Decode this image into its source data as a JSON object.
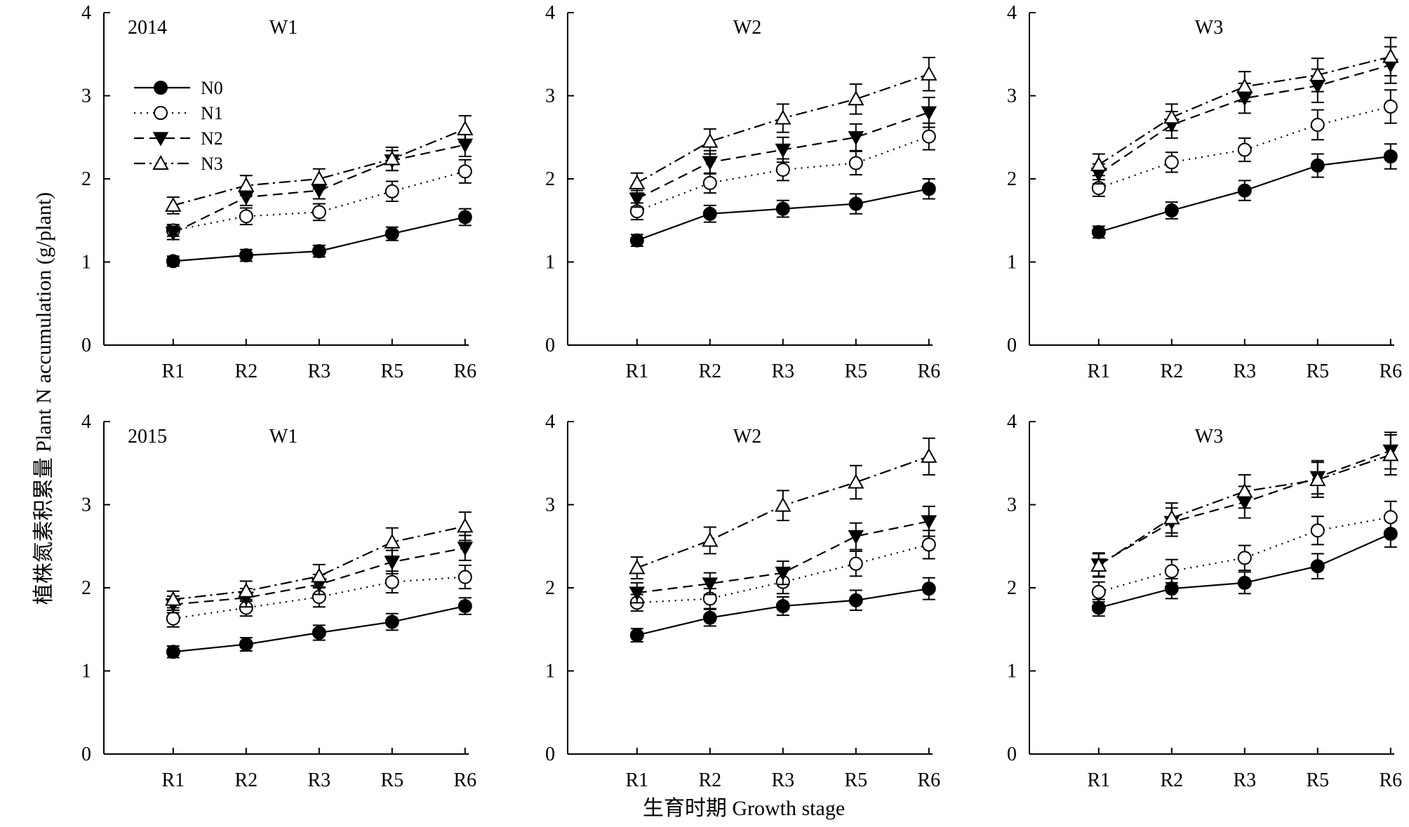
{
  "figure": {
    "ylabel": "植株氮素积累量 Plant N accumulation (g/plant)",
    "xlabel": "生育时期 Growth stage"
  },
  "legend": [
    {
      "name": "N0",
      "marker": "filled-circle",
      "line": "solid"
    },
    {
      "name": "N1",
      "marker": "open-circle",
      "line": "dotted"
    },
    {
      "name": "N2",
      "marker": "filled-triangle-down",
      "line": "dashed"
    },
    {
      "name": "N3",
      "marker": "open-triangle-up",
      "line": "dash-dot"
    }
  ],
  "chart_data": [
    {
      "type": "line",
      "year": "2014",
      "title": "W1",
      "categories": [
        "R1",
        "R2",
        "R3",
        "R5",
        "R6"
      ],
      "ylim": [
        0,
        4
      ],
      "yticks": [
        0,
        1,
        2,
        3,
        4
      ],
      "series": [
        {
          "name": "N0",
          "values": [
            1.01,
            1.08,
            1.13,
            1.34,
            1.54
          ],
          "errors": [
            0.06,
            0.07,
            0.07,
            0.08,
            0.1
          ]
        },
        {
          "name": "N1",
          "values": [
            1.38,
            1.55,
            1.6,
            1.85,
            2.09
          ],
          "errors": [
            0.07,
            0.1,
            0.1,
            0.12,
            0.14
          ]
        },
        {
          "name": "N2",
          "values": [
            1.35,
            1.78,
            1.86,
            2.22,
            2.41
          ],
          "errors": [
            0.08,
            0.1,
            0.1,
            0.12,
            0.14
          ]
        },
        {
          "name": "N3",
          "values": [
            1.68,
            1.92,
            2.0,
            2.24,
            2.6
          ],
          "errors": [
            0.1,
            0.12,
            0.12,
            0.14,
            0.16
          ]
        }
      ]
    },
    {
      "type": "line",
      "year": "",
      "title": "W2",
      "categories": [
        "R1",
        "R2",
        "R3",
        "R5",
        "R6"
      ],
      "ylim": [
        0,
        4
      ],
      "yticks": [
        0,
        1,
        2,
        3,
        4
      ],
      "series": [
        {
          "name": "N0",
          "values": [
            1.26,
            1.58,
            1.64,
            1.7,
            1.88
          ],
          "errors": [
            0.07,
            0.1,
            0.1,
            0.12,
            0.12
          ]
        },
        {
          "name": "N1",
          "values": [
            1.61,
            1.95,
            2.11,
            2.19,
            2.51
          ],
          "errors": [
            0.1,
            0.12,
            0.13,
            0.14,
            0.16
          ]
        },
        {
          "name": "N2",
          "values": [
            1.76,
            2.2,
            2.35,
            2.5,
            2.8
          ],
          "errors": [
            0.1,
            0.14,
            0.15,
            0.16,
            0.18
          ]
        },
        {
          "name": "N3",
          "values": [
            1.95,
            2.45,
            2.73,
            2.96,
            3.26
          ],
          "errors": [
            0.12,
            0.15,
            0.17,
            0.18,
            0.2
          ]
        }
      ]
    },
    {
      "type": "line",
      "year": "",
      "title": "W3",
      "categories": [
        "R1",
        "R2",
        "R3",
        "R5",
        "R6"
      ],
      "ylim": [
        0,
        4
      ],
      "yticks": [
        0,
        1,
        2,
        3,
        4
      ],
      "series": [
        {
          "name": "N0",
          "values": [
            1.36,
            1.62,
            1.86,
            2.16,
            2.27
          ],
          "errors": [
            0.07,
            0.1,
            0.12,
            0.14,
            0.15
          ]
        },
        {
          "name": "N1",
          "values": [
            1.89,
            2.2,
            2.35,
            2.65,
            2.87
          ],
          "errors": [
            0.1,
            0.12,
            0.14,
            0.18,
            0.2
          ]
        },
        {
          "name": "N2",
          "values": [
            2.06,
            2.65,
            2.97,
            3.12,
            3.37
          ],
          "errors": [
            0.12,
            0.16,
            0.18,
            0.2,
            0.22
          ]
        },
        {
          "name": "N3",
          "values": [
            2.17,
            2.74,
            3.11,
            3.25,
            3.47
          ],
          "errors": [
            0.13,
            0.16,
            0.18,
            0.2,
            0.23
          ]
        }
      ]
    },
    {
      "type": "line",
      "year": "2015",
      "title": "W1",
      "categories": [
        "R1",
        "R2",
        "R3",
        "R5",
        "R6"
      ],
      "ylim": [
        0,
        4
      ],
      "yticks": [
        0,
        1,
        2,
        3,
        4
      ],
      "series": [
        {
          "name": "N0",
          "values": [
            1.23,
            1.32,
            1.46,
            1.59,
            1.78
          ],
          "errors": [
            0.07,
            0.08,
            0.09,
            0.1,
            0.1
          ]
        },
        {
          "name": "N1",
          "values": [
            1.63,
            1.76,
            1.89,
            2.07,
            2.13
          ],
          "errors": [
            0.1,
            0.1,
            0.12,
            0.13,
            0.14
          ]
        },
        {
          "name": "N2",
          "values": [
            1.8,
            1.88,
            2.04,
            2.31,
            2.48
          ],
          "errors": [
            0.1,
            0.11,
            0.12,
            0.14,
            0.15
          ]
        },
        {
          "name": "N3",
          "values": [
            1.86,
            1.96,
            2.14,
            2.55,
            2.74
          ],
          "errors": [
            0.1,
            0.12,
            0.14,
            0.17,
            0.17
          ]
        }
      ]
    },
    {
      "type": "line",
      "year": "",
      "title": "W2",
      "categories": [
        "R1",
        "R2",
        "R3",
        "R5",
        "R6"
      ],
      "ylim": [
        0,
        4
      ],
      "yticks": [
        0,
        1,
        2,
        3,
        4
      ],
      "series": [
        {
          "name": "N0",
          "values": [
            1.43,
            1.64,
            1.78,
            1.85,
            1.99
          ],
          "errors": [
            0.08,
            0.1,
            0.11,
            0.12,
            0.13
          ]
        },
        {
          "name": "N1",
          "values": [
            1.82,
            1.87,
            2.07,
            2.29,
            2.52
          ],
          "errors": [
            0.1,
            0.12,
            0.14,
            0.15,
            0.17
          ]
        },
        {
          "name": "N2",
          "values": [
            1.94,
            2.05,
            2.18,
            2.62,
            2.8
          ],
          "errors": [
            0.12,
            0.13,
            0.14,
            0.16,
            0.18
          ]
        },
        {
          "name": "N3",
          "values": [
            2.24,
            2.57,
            2.99,
            3.27,
            3.58
          ],
          "errors": [
            0.13,
            0.16,
            0.18,
            0.2,
            0.22
          ]
        }
      ]
    },
    {
      "type": "line",
      "year": "",
      "title": "W3",
      "categories": [
        "R1",
        "R2",
        "R3",
        "R5",
        "R6"
      ],
      "ylim": [
        0,
        4
      ],
      "yticks": [
        0,
        1,
        2,
        3,
        4
      ],
      "series": [
        {
          "name": "N0",
          "values": [
            1.76,
            1.99,
            2.06,
            2.26,
            2.65
          ],
          "errors": [
            0.1,
            0.12,
            0.13,
            0.15,
            0.16
          ]
        },
        {
          "name": "N1",
          "values": [
            1.95,
            2.2,
            2.36,
            2.69,
            2.85
          ],
          "errors": [
            0.12,
            0.14,
            0.15,
            0.17,
            0.19
          ]
        },
        {
          "name": "N2",
          "values": [
            2.28,
            2.79,
            3.03,
            3.33,
            3.65
          ],
          "errors": [
            0.14,
            0.17,
            0.19,
            0.2,
            0.22
          ]
        },
        {
          "name": "N3",
          "values": [
            2.27,
            2.84,
            3.16,
            3.3,
            3.6
          ],
          "errors": [
            0.14,
            0.18,
            0.2,
            0.21,
            0.24
          ]
        }
      ]
    }
  ]
}
